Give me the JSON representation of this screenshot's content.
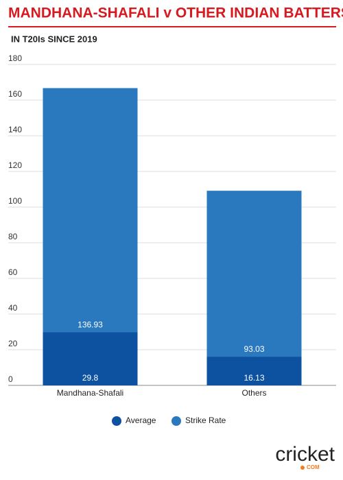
{
  "chart_data": {
    "type": "stacked_bar",
    "title": "MANDHANA-SHAFALI v OTHER INDIAN BATTERS",
    "subtitle": "IN T20Is SINCE 2019",
    "categories": [
      "Mandhana-Shafali",
      "Others"
    ],
    "series": [
      {
        "name": "Average",
        "color": "#0d52a0",
        "values": [
          29.8,
          16.13
        ]
      },
      {
        "name": "Strike Rate",
        "color": "#2a78be",
        "values": [
          136.93,
          93.03
        ]
      }
    ],
    "ylim": [
      0,
      180
    ],
    "yticks": [
      0,
      20,
      40,
      60,
      80,
      100,
      120,
      140,
      160,
      180
    ],
    "grid": true,
    "legend": "bottom"
  },
  "logo": {
    "name": "cricket",
    "suffix": "COM"
  }
}
